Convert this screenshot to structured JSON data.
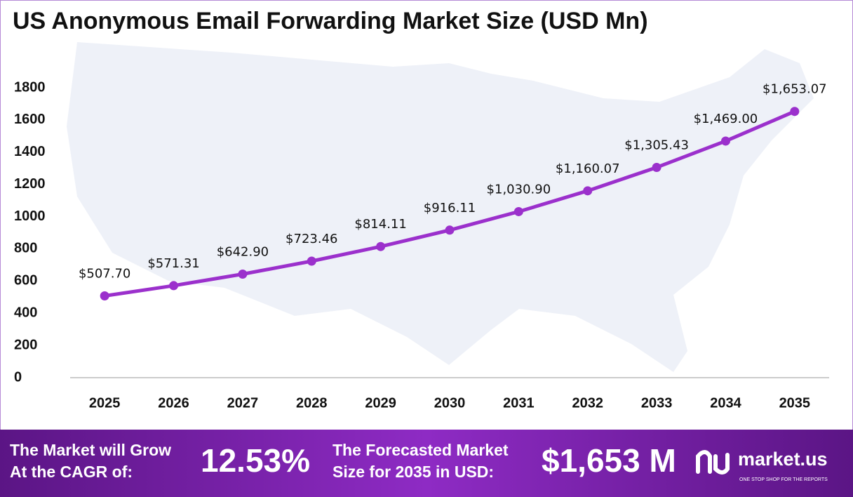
{
  "chart_data": {
    "type": "line",
    "title": "US Anonymous Email Forwarding Market Size (USD Mn)",
    "categories": [
      "2025",
      "2026",
      "2027",
      "2028",
      "2029",
      "2030",
      "2031",
      "2032",
      "2033",
      "2034",
      "2035"
    ],
    "values": [
      507.7,
      571.31,
      642.9,
      723.46,
      814.11,
      916.11,
      1030.9,
      1160.07,
      1305.43,
      1469.0,
      1653.07
    ],
    "value_labels": [
      "$507.70",
      "$571.31",
      "$642.90",
      "$723.46",
      "$814.11",
      "$916.11",
      "$1,030.90",
      "$1,160.07",
      "$1,305.43",
      "$1,469.00",
      "$1,653.07"
    ],
    "color": "#9b30cc",
    "ylim": [
      0,
      1800
    ],
    "yticks": [
      0,
      200,
      400,
      600,
      800,
      1000,
      1200,
      1400,
      1600,
      1800
    ],
    "grid": false
  },
  "footer": {
    "cagr_text": [
      "The Market will Grow",
      "At the CAGR of:"
    ],
    "cagr_value": "12.53%",
    "forecast_text": [
      "The Forecasted Market",
      "Size for 2035 in USD:"
    ],
    "forecast_value": "$1,653 M",
    "brand": "market.us",
    "tagline": "ONE STOP SHOP FOR THE REPORTS"
  }
}
